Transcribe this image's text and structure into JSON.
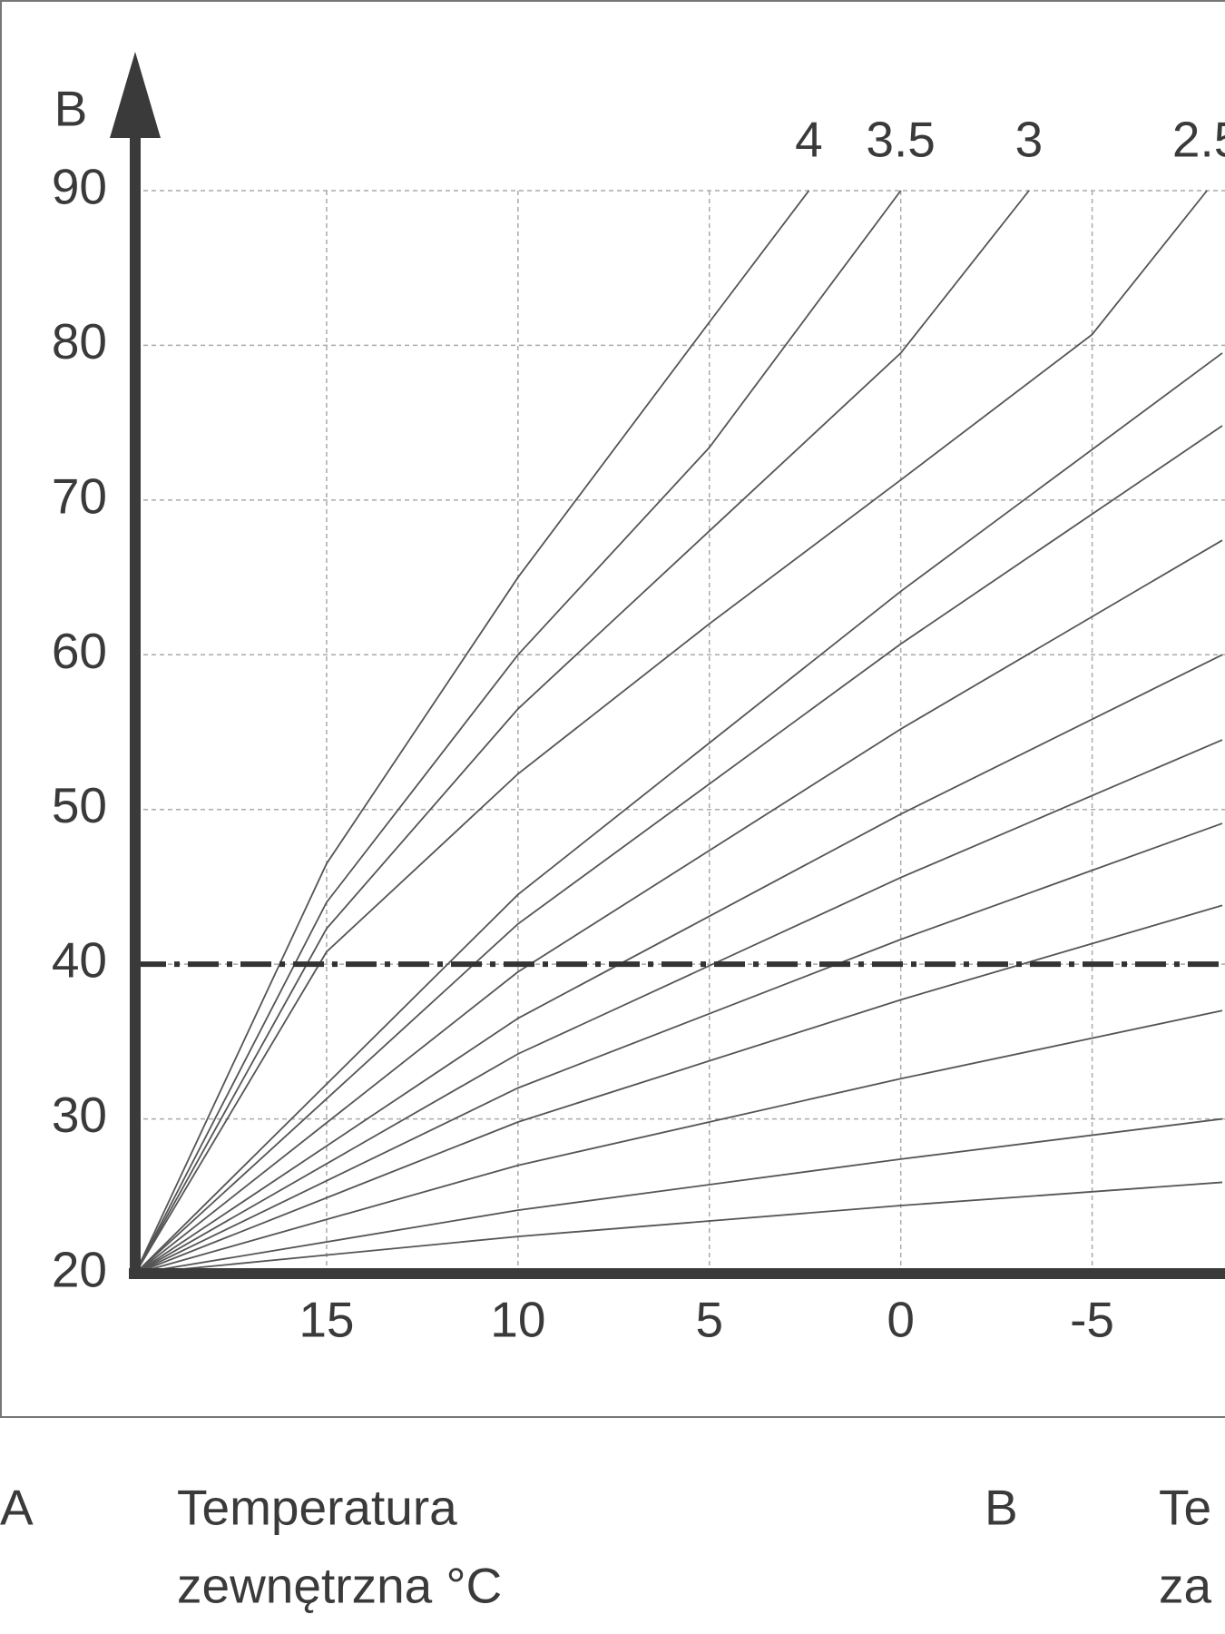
{
  "chart_data": {
    "type": "line",
    "ylabel": "B",
    "x": [],
    "series": [
      {
        "name": "4",
        "x": [
          20,
          15,
          10,
          5,
          2.4
        ],
        "values": [
          20,
          46.5,
          65,
          81.5,
          90
        ]
      },
      {
        "name": "3.5",
        "x": [
          20,
          15,
          10,
          5,
          0
        ],
        "values": [
          20,
          44,
          60,
          73.4,
          90
        ]
      },
      {
        "name": "3",
        "x": [
          20,
          15,
          10,
          5,
          0,
          -3.35
        ],
        "values": [
          20,
          42.3,
          56.5,
          68,
          79.5,
          90
        ]
      },
      {
        "name": "2.5",
        "x": [
          20,
          15,
          10,
          5,
          0,
          -5,
          -8
        ],
        "values": [
          20,
          40.8,
          52.3,
          62,
          71.3,
          80.7,
          90
        ]
      },
      {
        "x": [
          20,
          10,
          0,
          -8.4
        ],
        "values": [
          20,
          44.5,
          64.1,
          79.5
        ]
      },
      {
        "x": [
          20,
          10,
          0,
          -8.4
        ],
        "values": [
          20,
          42.6,
          60.7,
          74.8
        ]
      },
      {
        "x": [
          20,
          10,
          0,
          -8.4
        ],
        "values": [
          20,
          39.5,
          55.2,
          67.4
        ]
      },
      {
        "x": [
          20,
          10,
          0,
          -8.4
        ],
        "values": [
          20,
          36.5,
          49.7,
          60
        ]
      },
      {
        "x": [
          20,
          10,
          0,
          -8.4
        ],
        "values": [
          20,
          34.2,
          45.6,
          54.5
        ]
      },
      {
        "x": [
          20,
          10,
          0,
          -8.4
        ],
        "values": [
          20,
          32,
          41.6,
          49.1
        ]
      },
      {
        "x": [
          20,
          10,
          0,
          -8.4
        ],
        "values": [
          20,
          29.8,
          37.7,
          43.8
        ]
      },
      {
        "x": [
          20,
          10,
          0,
          -8.4
        ],
        "values": [
          20,
          27,
          32.6,
          37
        ]
      },
      {
        "x": [
          20,
          10,
          0,
          -8.4
        ],
        "values": [
          20,
          24.1,
          27.4,
          30
        ]
      },
      {
        "x": [
          20,
          10,
          0,
          -8.4
        ],
        "values": [
          20,
          22.4,
          24.4,
          25.9
        ]
      }
    ],
    "color": "#555555",
    "hline": 40,
    "xlim": [
      20,
      -8.4
    ],
    "ylim": [
      20,
      90
    ],
    "xticks": [
      15,
      10,
      5,
      0,
      -5
    ],
    "yticks": [
      20,
      30,
      40,
      50,
      60,
      70,
      80,
      90
    ],
    "grid": true,
    "legend": [
      {
        "key": "A",
        "text": [
          "Temperatura",
          "zewnętrzna °C"
        ]
      },
      {
        "key": "B",
        "text": [
          "Te",
          "za"
        ]
      }
    ]
  }
}
